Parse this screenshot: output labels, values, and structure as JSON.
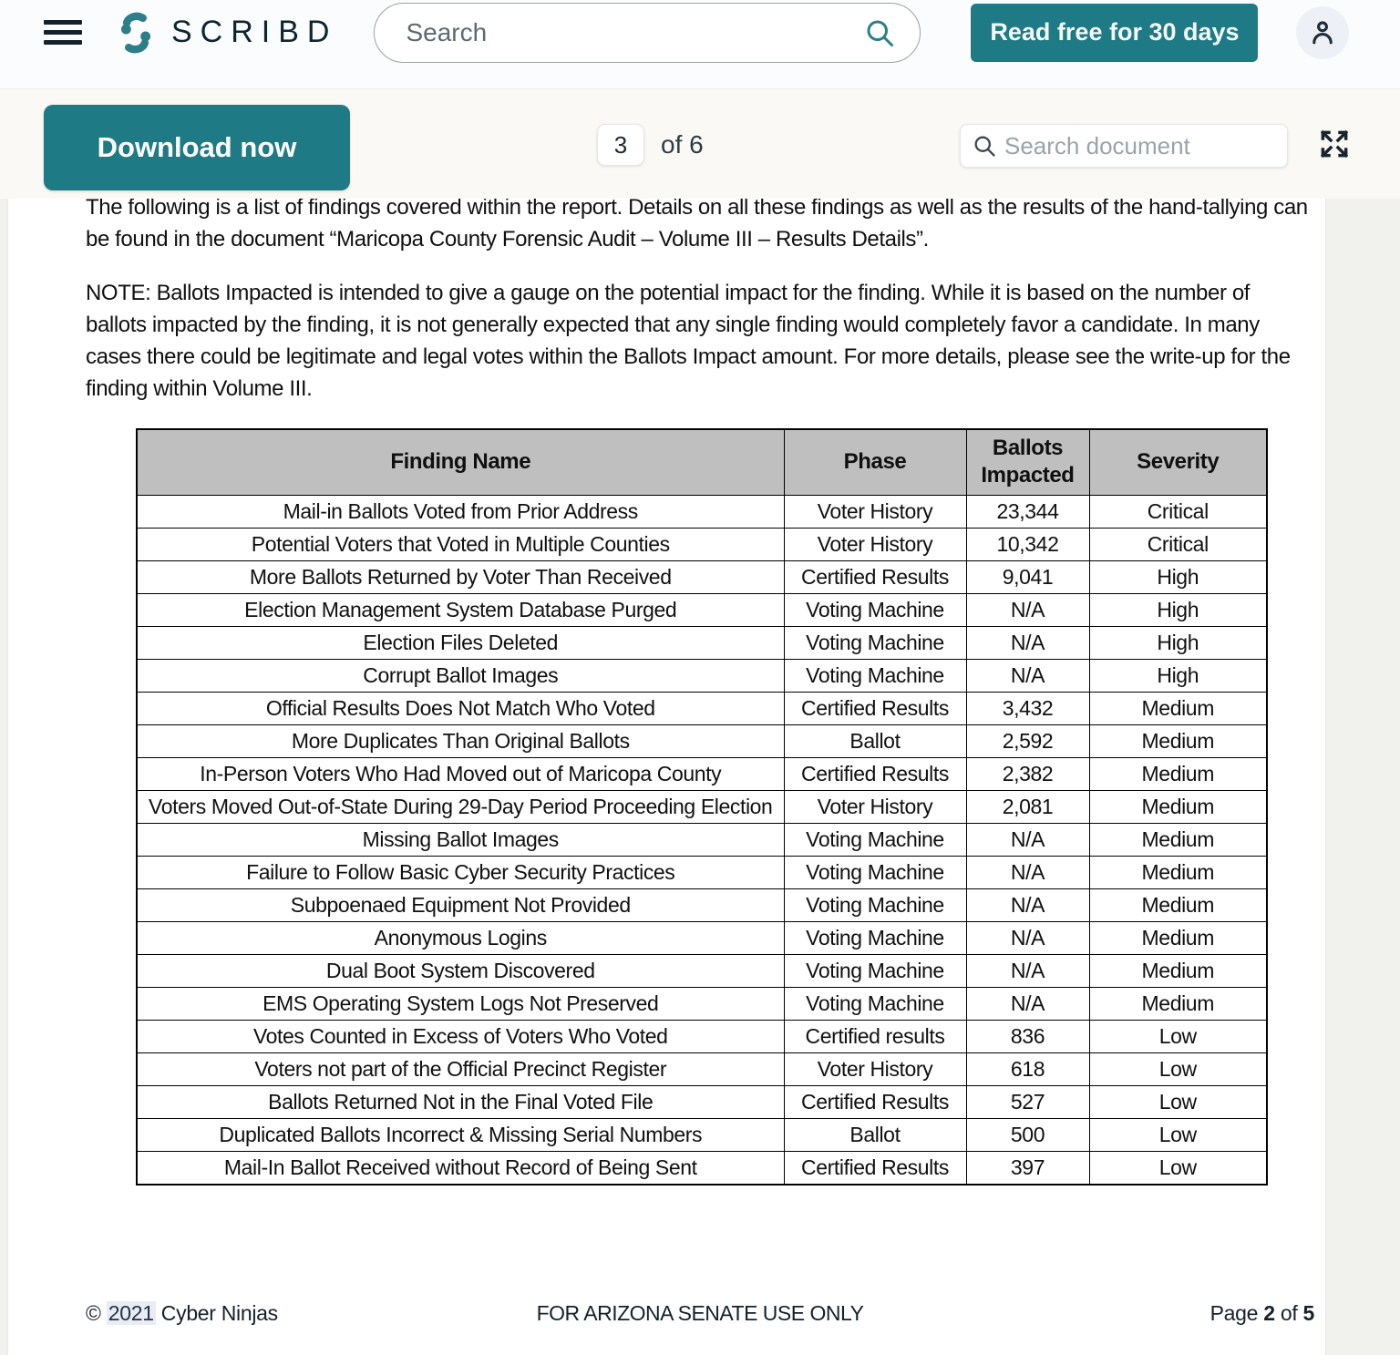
{
  "header": {
    "brand": "SCRIBD",
    "search_placeholder": "Search",
    "cta_label": "Read free for 30 days"
  },
  "toolbar": {
    "download_label": "Download now",
    "page_input_value": "3",
    "page_total_label": "of 6",
    "doc_search_placeholder": "Search document"
  },
  "icons": {
    "menu": "hamburger",
    "logo_mark": "scribd-s-quotes",
    "header_search": "magnifier",
    "account": "person-outline",
    "doc_search": "magnifier",
    "fullscreen": "expand-corner-arrows"
  },
  "colors": {
    "accent_teal": "#1e7b85",
    "logo_teal": "#2d7e88",
    "table_header_bg": "#bfbfbf",
    "ink": "#14212b"
  },
  "document": {
    "paragraph1": "The following is a list of findings covered within the report. Details on all these findings as well as the results of the hand-tallying can be found in the document “Maricopa County Forensic Audit – Volume III – Results Details”.",
    "paragraph2": "NOTE: Ballots Impacted is intended to give a gauge on the potential impact for the finding. While it is based on the number of ballots impacted by the finding, it is not generally expected that any single finding would completely favor a candidate. In many cases there could be legitimate and legal votes within the Ballots Impact amount. For more details, please see the write-up for the finding within Volume III.",
    "table": {
      "headers": [
        "Finding Name",
        "Phase",
        "Ballots Impacted",
        "Severity"
      ],
      "rows": [
        [
          "Mail-in Ballots Voted from Prior Address",
          "Voter History",
          "23,344",
          "Critical"
        ],
        [
          "Potential Voters that Voted in Multiple Counties",
          "Voter History",
          "10,342",
          "Critical"
        ],
        [
          "More Ballots Returned by Voter Than Received",
          "Certified Results",
          "9,041",
          "High"
        ],
        [
          "Election Management System Database Purged",
          "Voting Machine",
          "N/A",
          "High"
        ],
        [
          "Election Files Deleted",
          "Voting Machine",
          "N/A",
          "High"
        ],
        [
          "Corrupt Ballot Images",
          "Voting Machine",
          "N/A",
          "High"
        ],
        [
          "Official Results Does Not Match Who Voted",
          "Certified Results",
          "3,432",
          "Medium"
        ],
        [
          "More Duplicates Than Original Ballots",
          "Ballot",
          "2,592",
          "Medium"
        ],
        [
          "In-Person Voters Who Had Moved out of Maricopa County",
          "Certified Results",
          "2,382",
          "Medium"
        ],
        [
          "Voters Moved Out-of-State During 29-Day Period Proceeding Election",
          "Voter History",
          "2,081",
          "Medium"
        ],
        [
          "Missing Ballot Images",
          "Voting Machine",
          "N/A",
          "Medium"
        ],
        [
          "Failure to Follow Basic Cyber Security Practices",
          "Voting Machine",
          "N/A",
          "Medium"
        ],
        [
          "Subpoenaed Equipment Not Provided",
          "Voting Machine",
          "N/A",
          "Medium"
        ],
        [
          "Anonymous Logins",
          "Voting Machine",
          "N/A",
          "Medium"
        ],
        [
          "Dual Boot System Discovered",
          "Voting Machine",
          "N/A",
          "Medium"
        ],
        [
          "EMS Operating System Logs Not Preserved",
          "Voting Machine",
          "N/A",
          "Medium"
        ],
        [
          "Votes Counted in Excess of Voters Who Voted",
          "Certified results",
          "836",
          "Low"
        ],
        [
          "Voters not part of the Official Precinct Register",
          "Voter History",
          "618",
          "Low"
        ],
        [
          "Ballots Returned Not in the Final Voted File",
          "Certified Results",
          "527",
          "Low"
        ],
        [
          "Duplicated Ballots Incorrect & Missing Serial Numbers",
          "Ballot",
          "500",
          "Low"
        ],
        [
          "Mail-In Ballot Received without Record of Being Sent",
          "Certified Results",
          "397",
          "Low"
        ]
      ]
    },
    "footer": {
      "copyright_prefix": "© ",
      "copyright_year": "2021",
      "copyright_suffix": " Cyber Ninjas",
      "center": "FOR ARIZONA SENATE USE ONLY",
      "page_label_parts": [
        "Page ",
        "2",
        " of ",
        "5"
      ]
    }
  }
}
